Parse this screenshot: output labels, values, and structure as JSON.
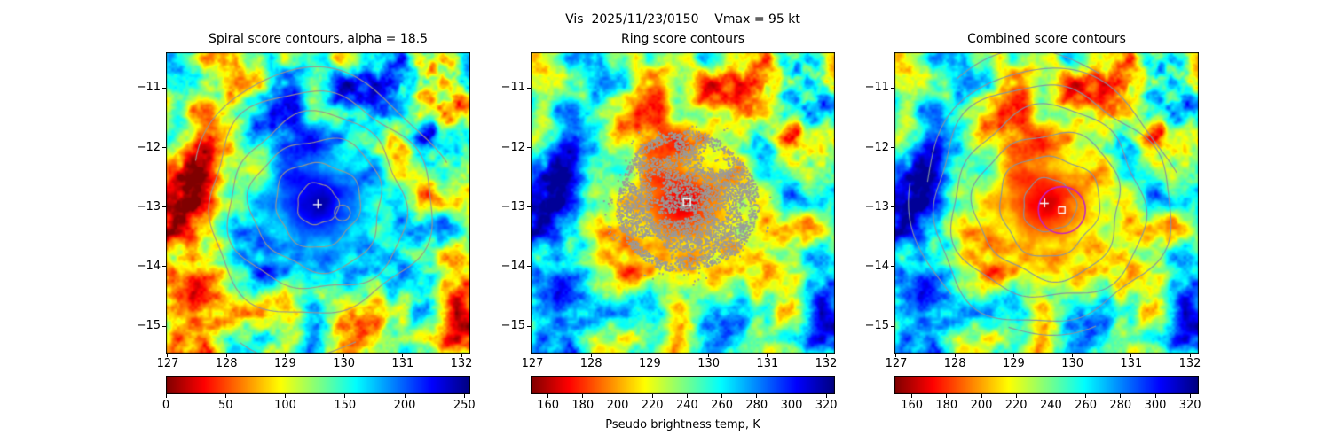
{
  "figure": {
    "suptitle": "Vis  2025/11/23/0150    Vmax = 95 kt",
    "sensor": "Vis",
    "datetime": "2025/11/23/0150",
    "vmax_label": "Vmax = 95 kt",
    "colorbar_label": "Pseudo brightness temp, K",
    "background_color": "#ffffff"
  },
  "chart_data": [
    {
      "type": "heatmap",
      "title": "Spiral score contours, alpha = 18.5",
      "x_ticks": [
        127,
        128,
        129,
        130,
        131,
        132
      ],
      "y_ticks": [
        -11,
        -12,
        -13,
        -14,
        -15
      ],
      "xlim": [
        126.97,
        132.15
      ],
      "ylim": [
        -15.46,
        -10.4
      ],
      "colormap": "jet_r",
      "grid": false,
      "colorbar": {
        "vmin": 0,
        "vmax": 255,
        "ticks": [
          0,
          50,
          100,
          150,
          200,
          250
        ]
      },
      "overlays": {
        "contours": {
          "color": "#9b978e",
          "center_lon": 129.55,
          "center_lat": -12.95,
          "radii_deg": [
            0.35,
            0.72,
            1.12,
            1.5,
            1.89
          ]
        },
        "plus_marker": {
          "symbol": "+",
          "color": "#ffffff",
          "lon": 129.55,
          "lat": -12.95
        }
      }
    },
    {
      "type": "heatmap",
      "title": "Ring score contours",
      "x_ticks": [
        127,
        128,
        129,
        130,
        131,
        132
      ],
      "y_ticks": [
        -11,
        -12,
        -13,
        -14,
        -15
      ],
      "xlim": [
        126.97,
        132.15
      ],
      "ylim": [
        -15.46,
        -10.4
      ],
      "colormap": "jet_r",
      "grid": false,
      "colorbar": {
        "vmin": 150,
        "vmax": 325,
        "ticks": [
          160,
          180,
          200,
          220,
          240,
          260,
          280,
          300,
          320
        ]
      },
      "overlays": {
        "speckle_disc": {
          "color": "#9a9a9a",
          "lon": 129.63,
          "lat": -12.92,
          "radius_deg": 1.22
        },
        "square_marker": {
          "symbol": "□",
          "color": "#ffffff",
          "lon": 129.63,
          "lat": -12.92
        }
      }
    },
    {
      "type": "heatmap",
      "title": "Combined score contours",
      "x_ticks": [
        127,
        128,
        129,
        130,
        131,
        132
      ],
      "y_ticks": [
        -11,
        -12,
        -13,
        -14,
        -15
      ],
      "xlim": [
        126.97,
        132.15
      ],
      "ylim": [
        -15.46,
        -10.4
      ],
      "colormap": "jet_r",
      "grid": false,
      "colorbar": {
        "vmin": 150,
        "vmax": 325,
        "ticks": [
          160,
          180,
          200,
          220,
          240,
          260,
          280,
          300,
          320
        ]
      },
      "overlays": {
        "contours": {
          "color": "#8493a3",
          "center_lon": 129.6,
          "center_lat": -12.97,
          "radii_deg": [
            0.45,
            0.85,
            1.24,
            1.63,
            2.01
          ]
        },
        "ring_circle": {
          "color": "#c322c3",
          "lon": 129.82,
          "lat": -13.05,
          "radius_deg": 0.4
        },
        "plus_marker": {
          "symbol": "+",
          "color": "#ffffff",
          "lon": 129.52,
          "lat": -12.93
        },
        "square_marker": {
          "symbol": "□",
          "color": "#ffffff",
          "lon": 129.82,
          "lat": -13.05
        }
      }
    }
  ]
}
